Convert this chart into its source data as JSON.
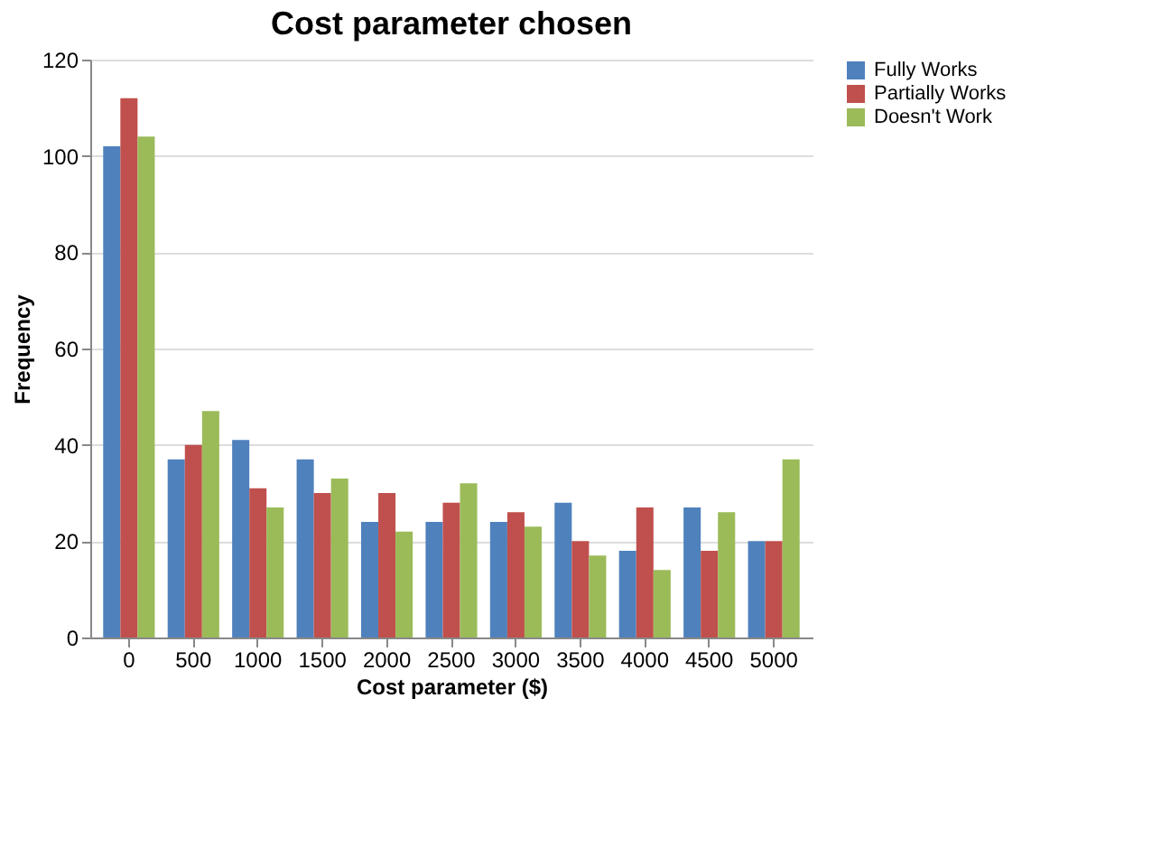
{
  "chart_data": {
    "type": "bar",
    "title": "Cost parameter chosen",
    "xlabel": "Cost parameter ($)",
    "ylabel": "Frequency",
    "categories": [
      "0",
      "500",
      "1000",
      "1500",
      "2000",
      "2500",
      "3000",
      "3500",
      "4000",
      "4500",
      "5000"
    ],
    "series": [
      {
        "name": "Fully Works",
        "color": "#4f81bd",
        "values": [
          102,
          37,
          41,
          37,
          24,
          24,
          24,
          28,
          18,
          27,
          20
        ]
      },
      {
        "name": "Partially Works",
        "color": "#c0504d",
        "values": [
          112,
          40,
          31,
          30,
          30,
          28,
          26,
          20,
          27,
          18,
          20
        ]
      },
      {
        "name": "Doesn't Work",
        "color": "#9bbb59",
        "values": [
          104,
          47,
          27,
          33,
          22,
          32,
          23,
          17,
          14,
          26,
          37
        ]
      }
    ],
    "ylim": [
      0,
      120
    ],
    "yticks": [
      0,
      20,
      40,
      60,
      80,
      100,
      120
    ],
    "grid": "y",
    "legend": "right"
  }
}
